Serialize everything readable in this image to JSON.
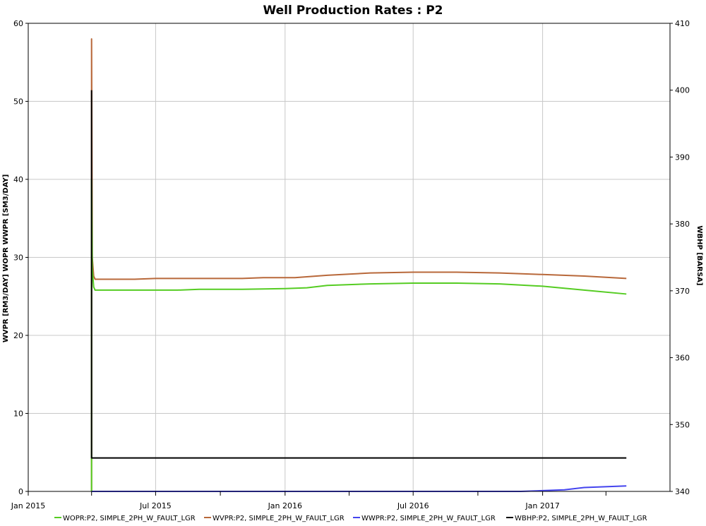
{
  "chart_data": {
    "type": "line",
    "title": "Well Production Rates : P2",
    "ylabel_left": "WVPR [RM3/DAY] WOPR WWPR [SM3/DAY]",
    "ylabel_right": "WBHP [BARSA]",
    "ylim_left": [
      0,
      60
    ],
    "ylim_right": [
      340,
      410
    ],
    "yticks_left": [
      0,
      10,
      20,
      30,
      40,
      50,
      60
    ],
    "yticks_right": [
      340,
      350,
      360,
      370,
      380,
      390,
      400,
      410
    ],
    "xlim": [
      "2015-01-01",
      "2017-07-01"
    ],
    "xticks": [
      {
        "date": "2015-01-01",
        "label": "Jan 2015"
      },
      {
        "date": "2015-07-01",
        "label": "Jul 2015"
      },
      {
        "date": "2016-01-01",
        "label": "Jan 2016"
      },
      {
        "date": "2016-07-01",
        "label": "Jul 2016"
      },
      {
        "date": "2017-01-01",
        "label": "Jan 2017"
      }
    ],
    "minor_xticks": [
      "2015-04-01",
      "2015-10-01",
      "2016-04-01",
      "2016-10-01",
      "2017-04-01"
    ],
    "grid": true,
    "legend_position": "bottom",
    "series": [
      {
        "name": "WOPR:P2, SIMPLE_2PH_W_FAULT_LGR",
        "color": "#55cc22",
        "axis": "left",
        "points": [
          [
            "2015-04-01",
            0
          ],
          [
            "2015-04-01",
            40
          ],
          [
            "2015-04-02",
            28.5
          ],
          [
            "2015-04-04",
            26.2
          ],
          [
            "2015-04-06",
            25.8
          ],
          [
            "2015-06-01",
            25.8
          ],
          [
            "2015-08-01",
            25.8
          ],
          [
            "2015-09-01",
            25.9
          ],
          [
            "2015-11-01",
            25.9
          ],
          [
            "2016-01-01",
            26.0
          ],
          [
            "2016-02-01",
            26.1
          ],
          [
            "2016-03-01",
            26.4
          ],
          [
            "2016-05-01",
            26.6
          ],
          [
            "2016-07-01",
            26.7
          ],
          [
            "2016-09-01",
            26.7
          ],
          [
            "2016-11-01",
            26.6
          ],
          [
            "2017-01-01",
            26.3
          ],
          [
            "2017-03-01",
            25.8
          ],
          [
            "2017-04-30",
            25.3
          ]
        ]
      },
      {
        "name": "WVPR:P2, SIMPLE_2PH_W_FAULT_LGR",
        "color": "#b8683a",
        "axis": "left",
        "points": [
          [
            "2015-04-01",
            0
          ],
          [
            "2015-04-01",
            58
          ],
          [
            "2015-04-02",
            30
          ],
          [
            "2015-04-04",
            27.6
          ],
          [
            "2015-04-06",
            27.2
          ],
          [
            "2015-06-01",
            27.2
          ],
          [
            "2015-07-01",
            27.3
          ],
          [
            "2015-11-01",
            27.3
          ],
          [
            "2015-12-01",
            27.4
          ],
          [
            "2016-01-15",
            27.4
          ],
          [
            "2016-03-01",
            27.7
          ],
          [
            "2016-05-01",
            28.0
          ],
          [
            "2016-07-01",
            28.1
          ],
          [
            "2016-09-01",
            28.1
          ],
          [
            "2016-11-01",
            28.0
          ],
          [
            "2017-01-01",
            27.8
          ],
          [
            "2017-03-01",
            27.6
          ],
          [
            "2017-04-30",
            27.3
          ]
        ]
      },
      {
        "name": "WWPR:P2, SIMPLE_2PH_W_FAULT_LGR",
        "color": "#4444ee",
        "axis": "left",
        "points": [
          [
            "2015-04-01",
            0
          ],
          [
            "2016-12-01",
            0
          ],
          [
            "2017-01-01",
            0.1
          ],
          [
            "2017-02-01",
            0.2
          ],
          [
            "2017-03-01",
            0.5
          ],
          [
            "2017-04-30",
            0.7
          ]
        ]
      },
      {
        "name": "WBHP:P2, SIMPLE_2PH_W_FAULT_LGR",
        "color": "#000000",
        "axis": "right",
        "points": [
          [
            "2015-04-01",
            400
          ],
          [
            "2015-04-01",
            345
          ],
          [
            "2017-04-30",
            345
          ]
        ]
      }
    ]
  }
}
